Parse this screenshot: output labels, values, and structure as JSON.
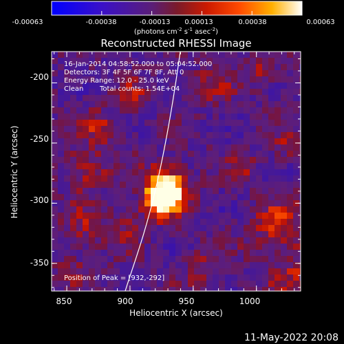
{
  "colorbar": {
    "ticks": [
      "-0.00063",
      "-0.00038",
      "-0.00013",
      "0.00013",
      "0.00038",
      "0.00063"
    ],
    "unit_base": "(photons cm",
    "unit_sup1": "-2",
    "unit_mid": " s",
    "unit_sup2": "-1",
    "unit_mid2": " asec",
    "unit_sup3": "-2",
    "unit_end": ")"
  },
  "chart_data": {
    "type": "heatmap",
    "title": "Reconstructed RHESSI Image",
    "xlabel": "Heliocentric X (arcsec)",
    "ylabel": "Heliocentric Y (arcsec)",
    "xlim": [
      838,
      1035
    ],
    "ylim": [
      -373,
      -174
    ],
    "x_ticks": [
      "850",
      "900",
      "950",
      "1000"
    ],
    "y_ticks": [
      "-200",
      "-250",
      "-300",
      "-350"
    ],
    "x_tick_values": [
      850,
      900,
      950,
      1000
    ],
    "y_tick_values": [
      -200,
      -250,
      -300,
      -350
    ],
    "colorbar_range": [
      -0.00063,
      0.00063
    ],
    "peak": [
      932,
      -292
    ],
    "annotations": [
      "16-Jan-2014 04:58:52.000 to 05:04:52.000",
      "Detectors: 3F 4F 5F 6F 7F 8F, Att 0",
      "Energy Range: 12.0 - 25.0 keV",
      "Clean",
      "Total counts: 1.54E+04",
      "Position of Peak = [932,-292]"
    ]
  },
  "footer": {
    "timestamp": "11-May-2022 20:08"
  }
}
